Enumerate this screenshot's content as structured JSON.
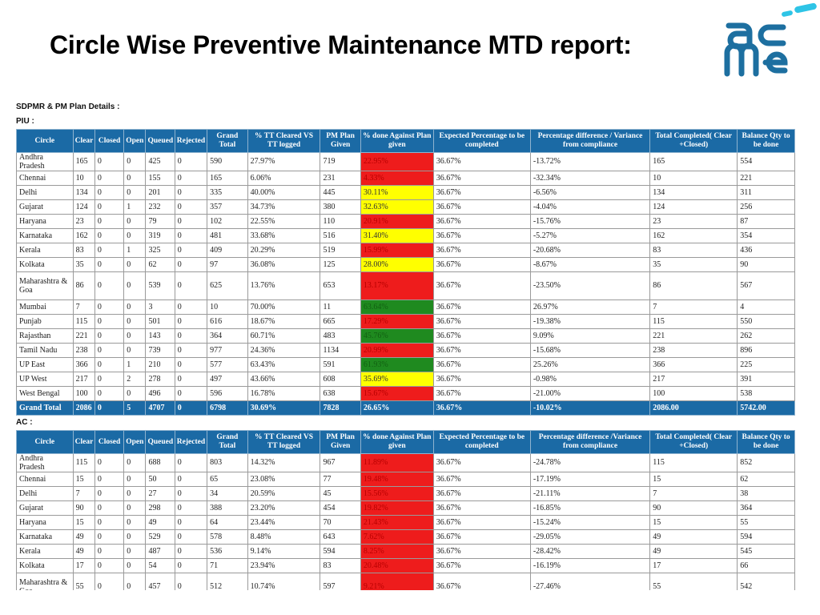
{
  "title": "Circle Wise Preventive Maintenance MTD report:",
  "logo": {
    "name": "acme-logo",
    "colors": {
      "dark": "#1d6fa0",
      "light": "#2ec4e6"
    }
  },
  "colors": {
    "header": "#1b6aa5",
    "red": "#ee1c1c",
    "yellow": "#ffff00",
    "green": "#1f8a1f"
  },
  "section_heading": "SDPMR & PM Plan Details :",
  "columns": [
    "Circle",
    "Clear",
    "Closed",
    "Open",
    "Queued",
    "Rejected",
    "Grand Total",
    "% TT Cleared VS TT logged",
    "PM Plan Given",
    "% done Against Plan given",
    "Expected Percentage to be completed",
    "Percentage difference / Variance from compliance",
    "Total Completed( Clear +Closed)",
    "Balance Qty to be done"
  ],
  "columns_ac": [
    "Circle",
    "Clear",
    "Closed",
    "Open",
    "Queued",
    "Rejected",
    "Grand Total",
    "% TT Cleared VS TT logged",
    "PM Plan Given",
    "% done Against Plan given",
    "Expected Percentage to be completed",
    "Percentage difference /Variance from compliance",
    "Total Completed( Clear +Closed)",
    "Balance Qty to be done"
  ],
  "piu": {
    "label": "PIU :",
    "rows": [
      {
        "cells": [
          "Andhra Pradesh",
          "165",
          "0",
          "0",
          "425",
          "0",
          "590",
          "27.97%",
          "719",
          "22.95%",
          "36.67%",
          "-13.72%",
          "165",
          "554"
        ],
        "status": "red"
      },
      {
        "cells": [
          "Chennai",
          "10",
          "0",
          "0",
          "155",
          "0",
          "165",
          "6.06%",
          "231",
          "4.33%",
          "36.67%",
          "-32.34%",
          "10",
          "221"
        ],
        "status": "red"
      },
      {
        "cells": [
          "Delhi",
          "134",
          "0",
          "0",
          "201",
          "0",
          "335",
          "40.00%",
          "445",
          "30.11%",
          "36.67%",
          "-6.56%",
          "134",
          "311"
        ],
        "status": "yellow"
      },
      {
        "cells": [
          "Gujarat",
          "124",
          "0",
          "1",
          "232",
          "0",
          "357",
          "34.73%",
          "380",
          "32.63%",
          "36.67%",
          "-4.04%",
          "124",
          "256"
        ],
        "status": "yellow"
      },
      {
        "cells": [
          "Haryana",
          "23",
          "0",
          "0",
          "79",
          "0",
          "102",
          "22.55%",
          "110",
          "20.91%",
          "36.67%",
          "-15.76%",
          "23",
          "87"
        ],
        "status": "red"
      },
      {
        "cells": [
          "Karnataka",
          "162",
          "0",
          "0",
          "319",
          "0",
          "481",
          "33.68%",
          "516",
          "31.40%",
          "36.67%",
          "-5.27%",
          "162",
          "354"
        ],
        "status": "yellow"
      },
      {
        "cells": [
          "Kerala",
          "83",
          "0",
          "1",
          "325",
          "0",
          "409",
          "20.29%",
          "519",
          "15.99%",
          "36.67%",
          "-20.68%",
          "83",
          "436"
        ],
        "status": "red"
      },
      {
        "cells": [
          "Kolkata",
          "35",
          "0",
          "0",
          "62",
          "0",
          "97",
          "36.08%",
          "125",
          "28.00%",
          "36.67%",
          "-8.67%",
          "35",
          "90"
        ],
        "status": "yellow"
      },
      {
        "cells": [
          "Maharashtra & Goa",
          "86",
          "0",
          "0",
          "539",
          "0",
          "625",
          "13.76%",
          "653",
          "13.17%",
          "36.67%",
          "-23.50%",
          "86",
          "567"
        ],
        "status": "red",
        "tall": true
      },
      {
        "cells": [
          "Mumbai",
          "7",
          "0",
          "0",
          "3",
          "0",
          "10",
          "70.00%",
          "11",
          "63.64%",
          "36.67%",
          "26.97%",
          "7",
          "4"
        ],
        "status": "green"
      },
      {
        "cells": [
          "Punjab",
          "115",
          "0",
          "0",
          "501",
          "0",
          "616",
          "18.67%",
          "665",
          "17.29%",
          "36.67%",
          "-19.38%",
          "115",
          "550"
        ],
        "status": "red"
      },
      {
        "cells": [
          "Rajasthan",
          "221",
          "0",
          "0",
          "143",
          "0",
          "364",
          "60.71%",
          "483",
          "45.76%",
          "36.67%",
          "9.09%",
          "221",
          "262"
        ],
        "status": "green"
      },
      {
        "cells": [
          "Tamil Nadu",
          "238",
          "0",
          "0",
          "739",
          "0",
          "977",
          "24.36%",
          "1134",
          "20.99%",
          "36.67%",
          "-15.68%",
          "238",
          "896"
        ],
        "status": "red"
      },
      {
        "cells": [
          "UP East",
          "366",
          "0",
          "1",
          "210",
          "0",
          "577",
          "63.43%",
          "591",
          "61.93%",
          "36.67%",
          "25.26%",
          "366",
          "225"
        ],
        "status": "green"
      },
      {
        "cells": [
          "UP West",
          "217",
          "0",
          "2",
          "278",
          "0",
          "497",
          "43.66%",
          "608",
          "35.69%",
          "36.67%",
          "-0.98%",
          "217",
          "391"
        ],
        "status": "yellow"
      },
      {
        "cells": [
          "West Bengal",
          "100",
          "0",
          "0",
          "496",
          "0",
          "596",
          "16.78%",
          "638",
          "15.67%",
          "36.67%",
          "-21.00%",
          "100",
          "538"
        ],
        "status": "red"
      }
    ],
    "total": [
      "Grand Total",
      "2086",
      "0",
      "5",
      "4707",
      "0",
      "6798",
      "30.69%",
      "7828",
      "26.65%",
      "36.67%",
      "-10.02%",
      "2086.00",
      "5742.00"
    ]
  },
  "ac": {
    "label": "AC :",
    "rows": [
      {
        "cells": [
          "Andhra Pradesh",
          "115",
          "0",
          "0",
          "688",
          "0",
          "803",
          "14.32%",
          "967",
          "11.89%",
          "36.67%",
          "-24.78%",
          "115",
          "852"
        ],
        "status": "red"
      },
      {
        "cells": [
          "Chennai",
          "15",
          "0",
          "0",
          "50",
          "0",
          "65",
          "23.08%",
          "77",
          "19.48%",
          "36.67%",
          "-17.19%",
          "15",
          "62"
        ],
        "status": "red"
      },
      {
        "cells": [
          "Delhi",
          "7",
          "0",
          "0",
          "27",
          "0",
          "34",
          "20.59%",
          "45",
          "15.56%",
          "36.67%",
          "-21.11%",
          "7",
          "38"
        ],
        "status": "red"
      },
      {
        "cells": [
          "Gujarat",
          "90",
          "0",
          "0",
          "298",
          "0",
          "388",
          "23.20%",
          "454",
          "19.82%",
          "36.67%",
          "-16.85%",
          "90",
          "364"
        ],
        "status": "red"
      },
      {
        "cells": [
          "Haryana",
          "15",
          "0",
          "0",
          "49",
          "0",
          "64",
          "23.44%",
          "70",
          "21.43%",
          "36.67%",
          "-15.24%",
          "15",
          "55"
        ],
        "status": "red"
      },
      {
        "cells": [
          "Karnataka",
          "49",
          "0",
          "0",
          "529",
          "0",
          "578",
          "8.48%",
          "643",
          "7.62%",
          "36.67%",
          "-29.05%",
          "49",
          "594"
        ],
        "status": "red"
      },
      {
        "cells": [
          "Kerala",
          "49",
          "0",
          "0",
          "487",
          "0",
          "536",
          "9.14%",
          "594",
          "8.25%",
          "36.67%",
          "-28.42%",
          "49",
          "545"
        ],
        "status": "red"
      },
      {
        "cells": [
          "Kolkata",
          "17",
          "0",
          "0",
          "54",
          "0",
          "71",
          "23.94%",
          "83",
          "20.48%",
          "36.67%",
          "-16.19%",
          "17",
          "66"
        ],
        "status": "red"
      },
      {
        "cells": [
          "Maharashtra & Goa",
          "55",
          "0",
          "0",
          "457",
          "0",
          "512",
          "10.74%",
          "597",
          "9.21%",
          "36.67%",
          "-27.46%",
          "55",
          "542"
        ],
        "status": "red",
        "tall": true
      }
    ]
  }
}
